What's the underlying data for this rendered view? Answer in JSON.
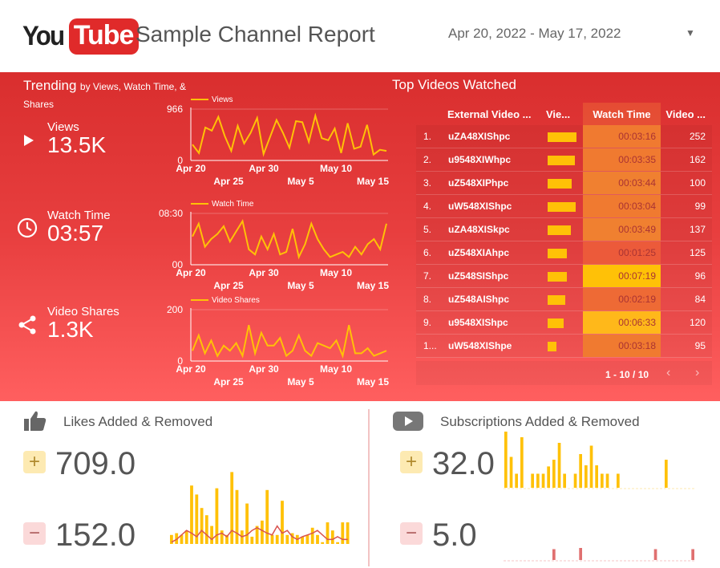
{
  "header": {
    "logo_you": "You",
    "logo_tube": "Tube",
    "title": "Sample Channel Report",
    "date_range": "Apr 20, 2022 - May 17, 2022"
  },
  "trending": {
    "title": "Trending",
    "subtitle": "by Views, Watch Time, &",
    "subtitle2": "Shares"
  },
  "kpis": {
    "views": {
      "label": "Views",
      "value": "13.5K",
      "icon": "play-icon"
    },
    "watch_time": {
      "label": "Watch Time",
      "value": "03:57",
      "icon": "clock-icon"
    },
    "shares": {
      "label": "Video Shares",
      "value": "1.3K",
      "icon": "share-icon"
    }
  },
  "colors": {
    "accent_yellow": "#ffc107",
    "brand_red": "#e02a2a",
    "minus_line": "#d9534f"
  },
  "chart_data": [
    {
      "type": "line",
      "legend": "Views",
      "ylim": [
        0,
        966
      ],
      "y_ticks": [
        "966",
        "0"
      ],
      "x_ticks_top": [
        "Apr 20",
        "Apr 30",
        "May 10"
      ],
      "x_ticks_bottom": [
        "Apr 25",
        "May 5",
        "May 15"
      ],
      "values": [
        300,
        140,
        620,
        560,
        820,
        460,
        180,
        650,
        320,
        520,
        800,
        120,
        440,
        760,
        520,
        240,
        740,
        720,
        350,
        840,
        420,
        380,
        600,
        140,
        700,
        220,
        260,
        670,
        110,
        200,
        180
      ]
    },
    {
      "type": "line",
      "legend": "Watch Time",
      "y_ticks": [
        "08:30",
        "00"
      ],
      "x_ticks_top": [
        "Apr 20",
        "Apr 30",
        "May 10"
      ],
      "x_ticks_bottom": [
        "Apr 25",
        "May 5",
        "May 15"
      ],
      "values": [
        0.55,
        0.8,
        0.35,
        0.5,
        0.6,
        0.75,
        0.45,
        0.65,
        0.85,
        0.3,
        0.2,
        0.55,
        0.3,
        0.6,
        0.2,
        0.25,
        0.7,
        0.15,
        0.4,
        0.8,
        0.5,
        0.3,
        0.15,
        0.2,
        0.25,
        0.15,
        0.35,
        0.2,
        0.4,
        0.5,
        0.3,
        0.8
      ]
    },
    {
      "type": "line",
      "legend": "Video Shares",
      "ylim": [
        0,
        200
      ],
      "y_ticks": [
        "200",
        "0"
      ],
      "x_ticks_top": [
        "Apr 20",
        "Apr 30",
        "May 10"
      ],
      "x_ticks_bottom": [
        "Apr 25",
        "May 5",
        "May 15"
      ],
      "values": [
        40,
        100,
        30,
        80,
        20,
        60,
        40,
        70,
        20,
        140,
        30,
        110,
        60,
        60,
        90,
        20,
        40,
        100,
        40,
        20,
        70,
        60,
        50,
        80,
        20,
        140,
        30,
        30,
        50,
        20,
        30,
        40
      ]
    },
    {
      "type": "bar",
      "title": "Likes Added & Removed",
      "series": [
        {
          "values": [
            0.1,
            0.12,
            0.1,
            0.15,
            0.65,
            0.55,
            0.4,
            0.32,
            0.2,
            0.62,
            0.15,
            0.1,
            0.8,
            0.6,
            0.15,
            0.45,
            0.08,
            0.2,
            0.26,
            0.6,
            0.1,
            0.1,
            0.48,
            0.1,
            0.12,
            0.1,
            0.08,
            0.1,
            0.18,
            0.1,
            0.02,
            0.24,
            0.15,
            0.02,
            0.24,
            0.24
          ]
        },
        {
          "type": "line",
          "values": [
            0.02,
            0.05,
            0.1,
            0.15,
            0.12,
            0.08,
            0.15,
            0.1,
            0.05,
            0.1,
            0.12,
            0.08,
            0.15,
            0.12,
            0.08,
            0.1,
            0.15,
            0.18,
            0.15,
            0.12,
            0.1,
            0.2,
            0.12,
            0.15,
            0.08,
            0.05,
            0.08,
            0.1,
            0.12,
            0.15,
            0.1,
            0.05,
            0.05,
            0.08,
            0.05,
            0.05
          ]
        }
      ]
    },
    {
      "type": "bar",
      "title": "Subscriptions Added & Removed",
      "series": [
        {
          "values": [
            1,
            0.55,
            0.25,
            0.9,
            0,
            0.25,
            0.25,
            0.25,
            0.38,
            0.5,
            0.8,
            0.25,
            0,
            0.25,
            0.6,
            0.4,
            0.75,
            0.4,
            0.25,
            0.25,
            0,
            0.25,
            0,
            0,
            0,
            0,
            0,
            0,
            0,
            0,
            0.5
          ]
        },
        {
          "values": [
            0,
            0,
            0,
            0,
            0,
            0,
            0,
            0,
            0,
            0.45,
            0,
            0,
            0,
            0,
            0.5,
            0,
            0,
            0,
            0,
            0,
            0,
            0,
            0,
            0,
            0,
            0,
            0,
            0,
            0.45,
            0,
            0,
            0,
            0,
            0,
            0,
            0.45
          ]
        }
      ]
    }
  ],
  "top_videos": {
    "title": "Top Videos Watched",
    "headers": {
      "name": "External Video ...",
      "views": "Vie...",
      "watch_time": "Watch Time",
      "video": "Video ..."
    },
    "rows": [
      {
        "idx": "1.",
        "name": "uZA48XIShpc",
        "views_level": 0.9,
        "watch_time": "00:03:16",
        "wt_color": "#f07a30",
        "video": "252"
      },
      {
        "idx": "2.",
        "name": "u9548XIWhpc",
        "views_level": 0.85,
        "watch_time": "00:03:35",
        "wt_color": "#f07a30",
        "video": "162"
      },
      {
        "idx": "3.",
        "name": "uZ548XIPhpc",
        "views_level": 0.75,
        "watch_time": "00:03:44",
        "wt_color": "#f08030",
        "video": "100"
      },
      {
        "idx": "4.",
        "name": "uW548XIShpc",
        "views_level": 0.88,
        "watch_time": "00:03:04",
        "wt_color": "#f07a30",
        "video": "99"
      },
      {
        "idx": "5.",
        "name": "uZA48XISkpc",
        "views_level": 0.72,
        "watch_time": "00:03:49",
        "wt_color": "#f08030",
        "video": "137"
      },
      {
        "idx": "6.",
        "name": "uZ548XIAhpc",
        "views_level": 0.6,
        "watch_time": "00:01:25",
        "wt_color": "#ec5a3a",
        "video": "125"
      },
      {
        "idx": "7.",
        "name": "uZ548SIShpc",
        "views_level": 0.6,
        "watch_time": "00:07:19",
        "wt_color": "#ffc107",
        "video": "96"
      },
      {
        "idx": "8.",
        "name": "uZ548AIShpc",
        "views_level": 0.55,
        "watch_time": "00:02:19",
        "wt_color": "#ee6a35",
        "video": "84"
      },
      {
        "idx": "9.",
        "name": "u9548XIShpc",
        "views_level": 0.5,
        "watch_time": "00:06:33",
        "wt_color": "#ffb81a",
        "video": "120"
      },
      {
        "idx": "1...",
        "name": "uW548XIShpe",
        "views_level": 0.28,
        "watch_time": "00:03:18",
        "wt_color": "#f07a30",
        "video": "95"
      }
    ],
    "pager": "1 - 10 / 10"
  },
  "likes": {
    "title": "Likes Added & Removed",
    "plus_sign": "+",
    "minus_sign": "−",
    "added": "709.0",
    "removed": "152.0"
  },
  "subs": {
    "title": "Subscriptions Added & Removed",
    "plus_sign": "+",
    "minus_sign": "−",
    "added": "32.0",
    "removed": "5.0"
  }
}
